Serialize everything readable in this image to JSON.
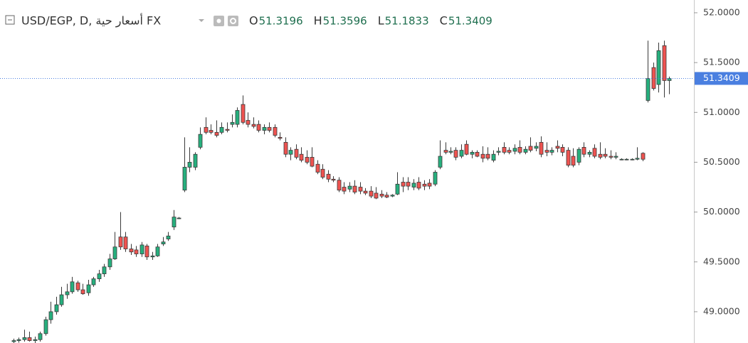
{
  "chart_data": {
    "type": "candlestick",
    "title": "USD/EGP, D, أسعار حية FX",
    "ohlc_header": [
      {
        "label": "O",
        "value": 51.3196
      },
      {
        "label": "H",
        "value": 51.3596
      },
      {
        "label": "L",
        "value": 51.1833
      },
      {
        "label": "C",
        "value": 51.3409
      }
    ],
    "up_color": "#26b07e",
    "down_color": "#ef5350",
    "wick_color": "#3a3a3a",
    "last_price": 51.3409,
    "last_price_color": "#4a7fe0",
    "ylim": [
      48.686,
      52.128
    ],
    "yticks": [
      {
        "value": 49,
        "label": "49.0000"
      },
      {
        "value": 49.5,
        "label": "49.5000"
      },
      {
        "value": 50,
        "label": "50.0000"
      },
      {
        "value": 50.5,
        "label": "50.5000"
      },
      {
        "value": 51,
        "label": "51.0000"
      },
      {
        "value": 51.5,
        "label": "51.5000"
      },
      {
        "value": 52,
        "label": "52.0000"
      }
    ],
    "grid": false,
    "ohlc": [
      [
        48.7,
        48.73,
        48.68,
        48.71
      ],
      [
        48.71,
        48.74,
        48.69,
        48.72
      ],
      [
        48.72,
        48.82,
        48.7,
        48.74
      ],
      [
        48.74,
        48.8,
        48.7,
        48.71
      ],
      [
        48.71,
        48.75,
        48.68,
        48.72
      ],
      [
        48.72,
        48.8,
        48.7,
        48.78
      ],
      [
        48.78,
        48.95,
        48.76,
        48.92
      ],
      [
        48.92,
        49.1,
        48.88,
        49.0
      ],
      [
        49.0,
        49.15,
        48.97,
        49.07
      ],
      [
        49.07,
        49.25,
        49.05,
        49.17
      ],
      [
        49.17,
        49.28,
        49.13,
        49.2
      ],
      [
        49.2,
        49.35,
        49.18,
        49.3
      ],
      [
        49.29,
        49.31,
        49.2,
        49.22
      ],
      [
        49.22,
        49.28,
        49.17,
        49.18
      ],
      [
        49.19,
        49.32,
        49.16,
        49.27
      ],
      [
        49.27,
        49.35,
        49.25,
        49.33
      ],
      [
        49.33,
        49.42,
        49.3,
        49.38
      ],
      [
        49.38,
        49.48,
        49.35,
        49.45
      ],
      [
        49.45,
        49.58,
        49.42,
        49.53
      ],
      [
        49.53,
        49.8,
        49.52,
        49.65
      ],
      [
        49.75,
        50.0,
        49.62,
        49.65
      ],
      [
        49.75,
        49.8,
        49.6,
        49.63
      ],
      [
        49.63,
        49.68,
        49.57,
        49.6
      ],
      [
        49.62,
        49.66,
        49.55,
        49.58
      ],
      [
        49.58,
        49.7,
        49.55,
        49.67
      ],
      [
        49.66,
        49.68,
        49.52,
        49.55
      ],
      [
        49.55,
        49.6,
        49.52,
        49.56
      ],
      [
        49.56,
        49.68,
        49.55,
        49.65
      ],
      [
        49.68,
        49.75,
        49.66,
        49.7
      ],
      [
        49.73,
        49.8,
        49.71,
        49.76
      ],
      [
        49.85,
        50.02,
        49.82,
        49.95
      ],
      [
        49.94,
        49.95,
        49.93,
        49.94
      ],
      [
        50.22,
        50.75,
        50.2,
        50.45
      ],
      [
        50.45,
        50.65,
        50.4,
        50.5
      ],
      [
        50.45,
        50.6,
        50.42,
        50.58
      ],
      [
        50.65,
        50.85,
        50.63,
        50.78
      ],
      [
        50.85,
        50.95,
        50.78,
        50.8
      ],
      [
        50.82,
        50.88,
        50.78,
        50.8
      ],
      [
        50.8,
        50.92,
        50.75,
        50.77
      ],
      [
        50.8,
        50.9,
        50.78,
        50.85
      ],
      [
        50.83,
        50.9,
        50.8,
        50.82
      ],
      [
        50.88,
        50.98,
        50.85,
        50.9
      ],
      [
        50.88,
        51.05,
        50.85,
        51.02
      ],
      [
        51.08,
        51.17,
        50.88,
        50.9
      ],
      [
        50.92,
        51.0,
        50.85,
        50.88
      ],
      [
        50.88,
        50.95,
        50.84,
        50.86
      ],
      [
        50.88,
        50.92,
        50.8,
        50.82
      ],
      [
        50.82,
        50.88,
        50.78,
        50.85
      ],
      [
        50.85,
        50.9,
        50.8,
        50.82
      ],
      [
        50.85,
        50.88,
        50.75,
        50.77
      ],
      [
        50.75,
        50.8,
        50.72,
        50.74
      ],
      [
        50.7,
        50.75,
        50.55,
        50.58
      ],
      [
        50.58,
        50.65,
        50.52,
        50.62
      ],
      [
        50.63,
        50.68,
        50.53,
        50.55
      ],
      [
        50.58,
        50.65,
        50.5,
        50.52
      ],
      [
        50.55,
        50.62,
        50.48,
        50.5
      ],
      [
        50.55,
        50.65,
        50.45,
        50.46
      ],
      [
        50.48,
        50.52,
        50.38,
        50.4
      ],
      [
        50.43,
        50.48,
        50.33,
        50.35
      ],
      [
        50.38,
        50.42,
        50.3,
        50.33
      ],
      [
        50.33,
        50.36,
        50.3,
        50.32
      ],
      [
        50.32,
        50.35,
        50.2,
        50.22
      ],
      [
        50.25,
        50.3,
        50.18,
        50.21
      ],
      [
        50.23,
        50.3,
        50.2,
        50.26
      ],
      [
        50.26,
        50.32,
        50.18,
        50.2
      ],
      [
        50.25,
        50.3,
        50.18,
        50.21
      ],
      [
        50.21,
        50.24,
        50.17,
        50.19
      ],
      [
        50.21,
        50.26,
        50.14,
        50.16
      ],
      [
        50.19,
        50.25,
        50.13,
        50.14
      ],
      [
        50.18,
        50.22,
        50.14,
        50.16
      ],
      [
        50.17,
        50.2,
        50.14,
        50.15
      ],
      [
        50.16,
        50.18,
        50.15,
        50.17
      ],
      [
        50.18,
        50.4,
        50.17,
        50.28
      ],
      [
        50.3,
        50.35,
        50.2,
        50.26
      ],
      [
        50.3,
        50.35,
        50.22,
        50.26
      ],
      [
        50.25,
        50.33,
        50.22,
        50.29
      ],
      [
        50.3,
        50.35,
        50.22,
        50.24
      ],
      [
        50.28,
        50.32,
        50.22,
        50.26
      ],
      [
        50.29,
        50.33,
        50.23,
        50.26
      ],
      [
        50.28,
        50.42,
        50.26,
        50.4
      ],
      [
        50.45,
        50.72,
        50.43,
        50.56
      ],
      [
        50.62,
        50.7,
        50.58,
        50.6
      ],
      [
        50.6,
        50.65,
        50.58,
        50.61
      ],
      [
        50.62,
        50.65,
        50.52,
        50.55
      ],
      [
        50.56,
        50.68,
        50.54,
        50.62
      ],
      [
        50.68,
        50.72,
        50.57,
        50.58
      ],
      [
        50.58,
        50.62,
        50.54,
        50.6
      ],
      [
        50.6,
        50.62,
        50.55,
        50.56
      ],
      [
        50.58,
        50.66,
        50.5,
        50.54
      ],
      [
        50.58,
        50.65,
        50.52,
        50.54
      ],
      [
        50.52,
        50.62,
        50.5,
        50.58
      ],
      [
        50.6,
        50.65,
        50.57,
        50.61
      ],
      [
        50.65,
        50.7,
        50.58,
        50.6
      ],
      [
        50.62,
        50.65,
        50.58,
        50.6
      ],
      [
        50.61,
        50.68,
        50.58,
        50.64
      ],
      [
        50.65,
        50.72,
        50.58,
        50.6
      ],
      [
        50.6,
        50.66,
        50.58,
        50.63
      ],
      [
        50.66,
        50.75,
        50.6,
        50.62
      ],
      [
        50.64,
        50.7,
        50.61,
        50.66
      ],
      [
        50.7,
        50.76,
        50.55,
        50.58
      ],
      [
        50.62,
        50.7,
        50.56,
        50.6
      ],
      [
        50.6,
        50.65,
        50.57,
        50.62
      ],
      [
        50.66,
        50.72,
        50.6,
        50.64
      ],
      [
        50.65,
        50.68,
        50.56,
        50.6
      ],
      [
        50.62,
        50.65,
        50.45,
        50.47
      ],
      [
        50.56,
        50.64,
        50.45,
        50.47
      ],
      [
        50.5,
        50.65,
        50.47,
        50.63
      ],
      [
        50.65,
        50.7,
        50.55,
        50.58
      ],
      [
        50.58,
        50.62,
        50.55,
        50.6
      ],
      [
        50.64,
        50.68,
        50.54,
        50.56
      ],
      [
        50.58,
        50.7,
        50.53,
        50.55
      ],
      [
        50.58,
        50.64,
        50.54,
        50.56
      ],
      [
        50.56,
        50.62,
        50.53,
        50.55
      ],
      [
        50.55,
        50.6,
        50.53,
        50.56
      ],
      [
        50.53,
        50.54,
        50.52,
        50.53
      ],
      [
        50.53,
        50.54,
        50.52,
        50.53
      ],
      [
        50.53,
        50.54,
        50.52,
        50.53
      ],
      [
        50.53,
        50.65,
        50.52,
        50.54
      ],
      [
        50.59,
        50.6,
        50.51,
        50.53
      ],
      [
        51.12,
        51.72,
        51.1,
        51.34
      ],
      [
        51.45,
        51.5,
        51.22,
        51.24
      ],
      [
        51.28,
        51.7,
        51.2,
        51.62
      ],
      [
        51.67,
        51.72,
        51.15,
        51.32
      ],
      [
        51.3196,
        51.3596,
        51.1833,
        51.3409
      ]
    ]
  }
}
